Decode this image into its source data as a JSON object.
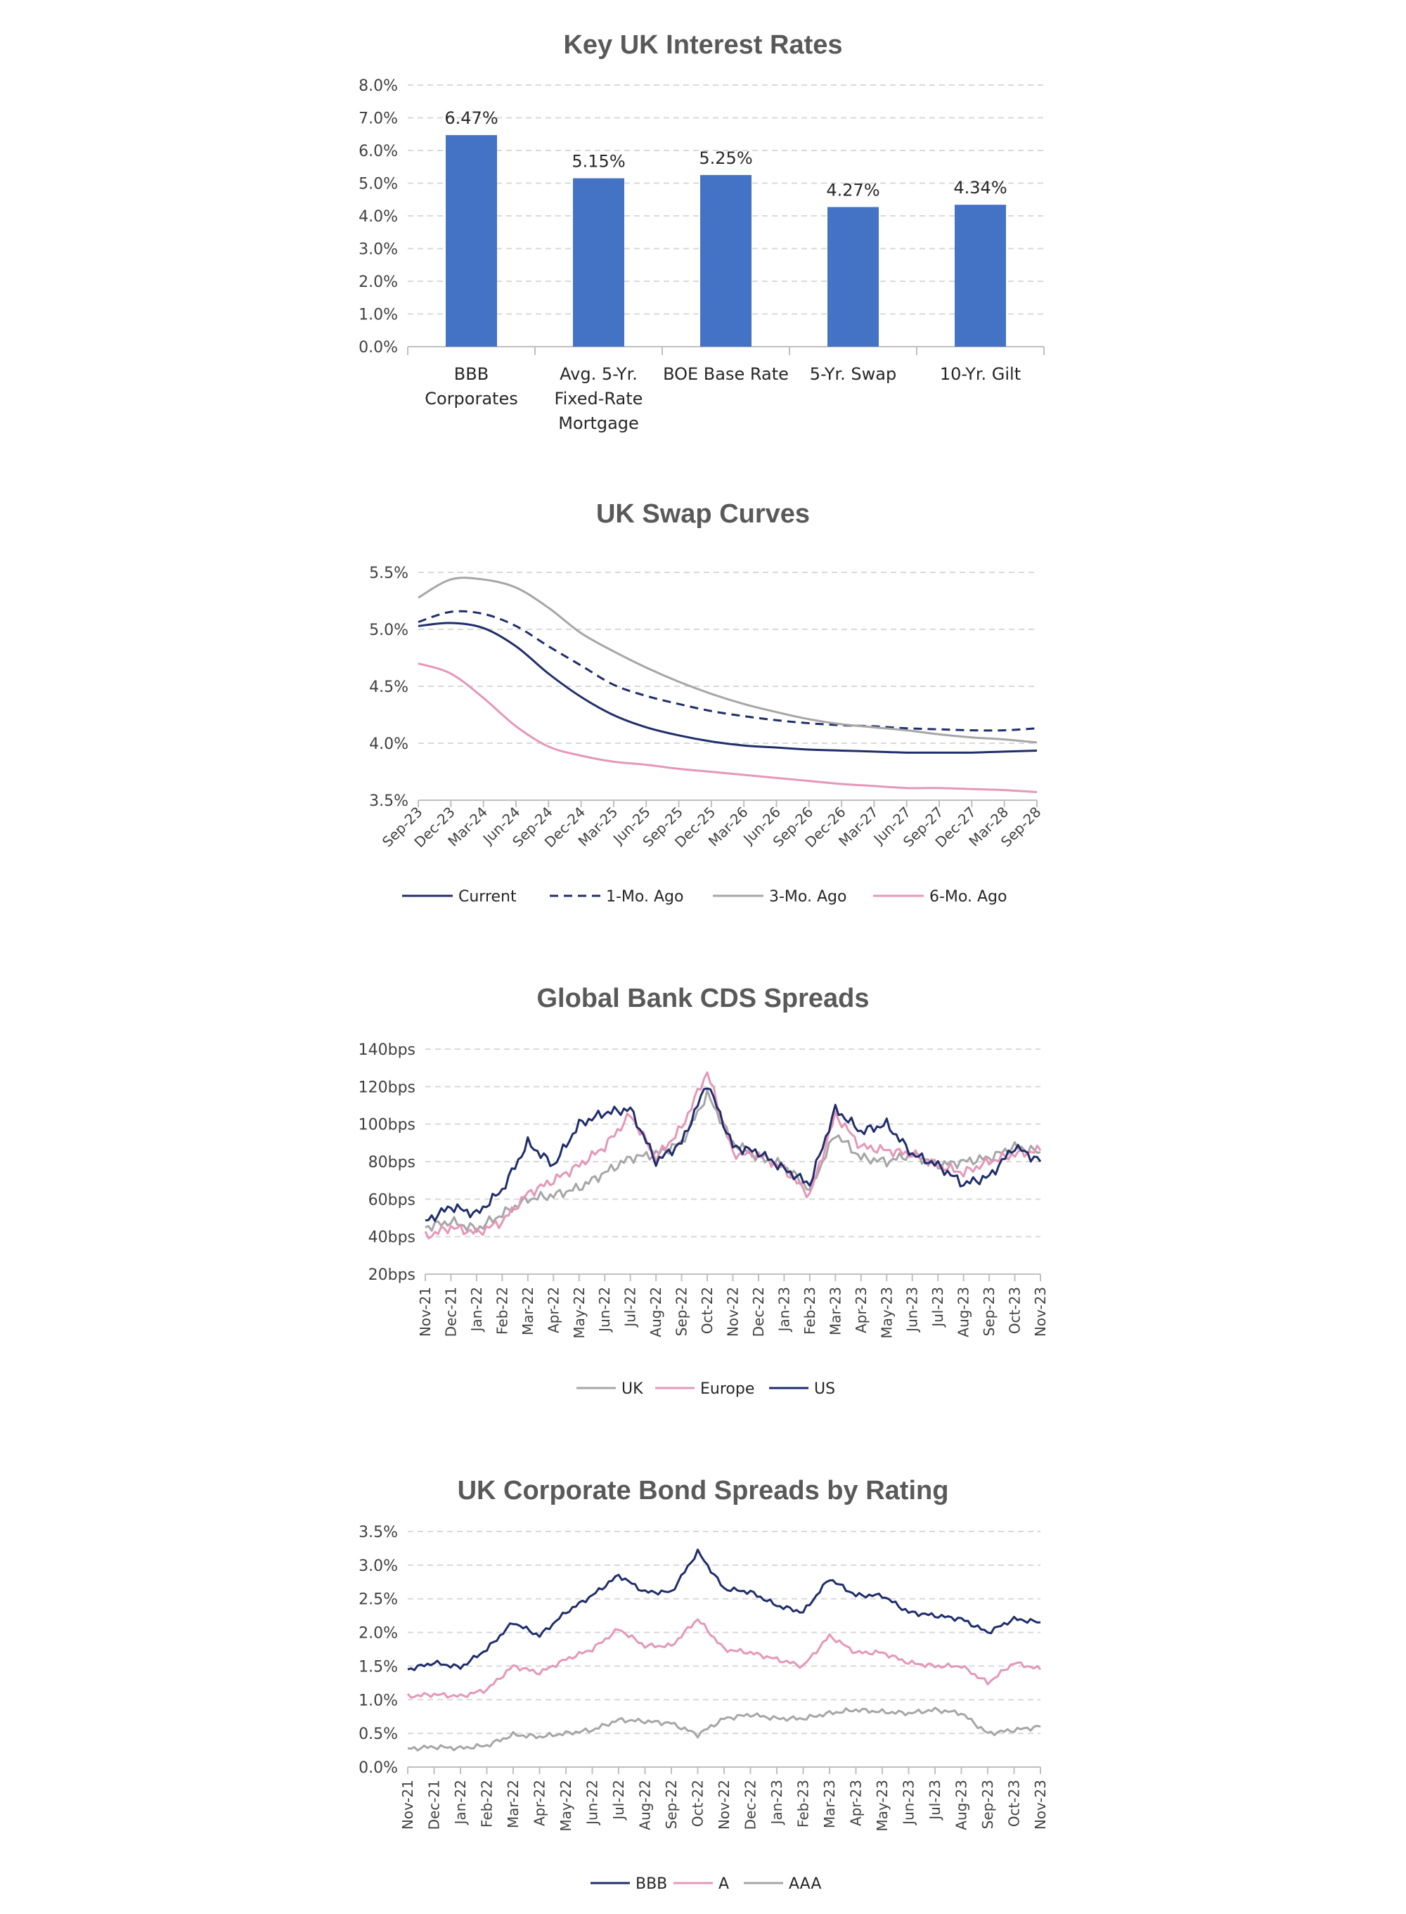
{
  "chart_data": [
    {
      "type": "bar",
      "title": "Key UK Interest Rates",
      "categories": [
        "BBB Corporates",
        "Avg. 5-Yr. Fixed-Rate Mortgage",
        "BOE Base Rate",
        "5-Yr. Swap",
        "10-Yr. Gilt"
      ],
      "category_lines": [
        [
          "BBB",
          "Corporates"
        ],
        [
          "Avg. 5-Yr.",
          "Fixed-Rate",
          "Mortgage"
        ],
        [
          "BOE Base Rate"
        ],
        [
          "5-Yr. Swap"
        ],
        [
          "10-Yr. Gilt"
        ]
      ],
      "values": [
        6.47,
        5.15,
        5.25,
        4.27,
        4.34
      ],
      "data_labels": [
        "6.47%",
        "5.15%",
        "5.25%",
        "4.27%",
        "4.34%"
      ],
      "yticks": [
        "0.0%",
        "1.0%",
        "2.0%",
        "3.0%",
        "4.0%",
        "5.0%",
        "6.0%",
        "7.0%",
        "8.0%"
      ],
      "ylim": [
        0,
        8
      ],
      "grid": true,
      "colors": {
        "bar": "#4472c4"
      }
    },
    {
      "type": "line",
      "title": "UK Swap Curves",
      "x": [
        "Sep-23",
        "Dec-23",
        "Mar-24",
        "Jun-24",
        "Sep-24",
        "Dec-24",
        "Mar-25",
        "Jun-25",
        "Sep-25",
        "Dec-25",
        "Mar-26",
        "Jun-26",
        "Sep-26",
        "Dec-26",
        "Mar-27",
        "Jun-27",
        "Sep-27",
        "Dec-27",
        "Mar-28",
        "Sep-28"
      ],
      "yticks": [
        "3.5%",
        "4.0%",
        "4.5%",
        "5.0%",
        "5.5%"
      ],
      "ylim": [
        3.5,
        5.75
      ],
      "grid": true,
      "legend": "bottom",
      "series": [
        {
          "name": "Current",
          "color": "#1f2d6b",
          "dash": "none",
          "values": [
            5.22,
            5.25,
            5.2,
            5.02,
            4.75,
            4.52,
            4.34,
            4.22,
            4.14,
            4.08,
            4.04,
            4.02,
            4.0,
            3.99,
            3.98,
            3.97,
            3.97,
            3.97,
            3.98,
            3.99
          ]
        },
        {
          "name": "1-Mo. Ago",
          "color": "#1f2d6b",
          "dash": "12,8",
          "values": [
            5.26,
            5.36,
            5.34,
            5.22,
            5.02,
            4.83,
            4.64,
            4.53,
            4.45,
            4.38,
            4.33,
            4.29,
            4.26,
            4.24,
            4.23,
            4.21,
            4.2,
            4.19,
            4.19,
            4.21
          ]
        },
        {
          "name": "3-Mo. Ago",
          "color": "#a6a6a6",
          "dash": "none",
          "values": [
            5.5,
            5.68,
            5.68,
            5.6,
            5.4,
            5.15,
            4.97,
            4.81,
            4.67,
            4.55,
            4.45,
            4.37,
            4.3,
            4.25,
            4.22,
            4.19,
            4.15,
            4.12,
            4.1,
            4.07
          ]
        },
        {
          "name": "6-Mo. Ago",
          "color": "#e597b8",
          "dash": "none",
          "values": [
            4.85,
            4.75,
            4.51,
            4.23,
            4.03,
            3.94,
            3.88,
            3.85,
            3.81,
            3.78,
            3.75,
            3.72,
            3.69,
            3.66,
            3.64,
            3.62,
            3.62,
            3.61,
            3.6,
            3.58
          ]
        }
      ]
    },
    {
      "type": "line",
      "title": "Global Bank CDS Spreads",
      "x": [
        "Nov-21",
        "Dec-21",
        "Jan-22",
        "Feb-22",
        "Mar-22",
        "Apr-22",
        "May-22",
        "Jun-22",
        "Jul-22",
        "Aug-22",
        "Sep-22",
        "Oct-22",
        "Nov-22",
        "Dec-22",
        "Jan-23",
        "Feb-23",
        "Mar-23",
        "Apr-23",
        "May-23",
        "Jun-23",
        "Jul-23",
        "Aug-23",
        "Sep-23",
        "Oct-23",
        "Nov-23"
      ],
      "yticks": [
        "20bps",
        "40bps",
        "60bps",
        "80bps",
        "100bps",
        "120bps",
        "140bps"
      ],
      "ylim": [
        20,
        140
      ],
      "grid": true,
      "legend": "bottom",
      "series": [
        {
          "name": "UK",
          "color": "#a6a6a6",
          "values": [
            45,
            48,
            44,
            52,
            60,
            62,
            66,
            74,
            82,
            84,
            90,
            116,
            90,
            82,
            78,
            65,
            95,
            82,
            80,
            84,
            78,
            80,
            82,
            88,
            85
          ]
        },
        {
          "name": "Europe",
          "color": "#e597b8",
          "values": [
            40,
            45,
            42,
            48,
            63,
            70,
            78,
            88,
            105,
            82,
            98,
            128,
            84,
            84,
            76,
            62,
            105,
            88,
            86,
            84,
            78,
            74,
            80,
            84,
            86
          ]
        },
        {
          "name": "US",
          "color": "#1f2d6b",
          "values": [
            48,
            56,
            52,
            65,
            90,
            78,
            100,
            106,
            108,
            80,
            90,
            122,
            88,
            85,
            76,
            68,
            108,
            96,
            100,
            84,
            78,
            68,
            72,
            88,
            80
          ]
        }
      ]
    },
    {
      "type": "line",
      "title": "UK Corporate Bond Spreads by Rating",
      "x": [
        "Nov-21",
        "Dec-21",
        "Jan-22",
        "Feb-22",
        "Mar-22",
        "Apr-22",
        "May-22",
        "Jun-22",
        "Jul-22",
        "Aug-22",
        "Sep-22",
        "Oct-22",
        "Nov-22",
        "Dec-22",
        "Jan-23",
        "Feb-23",
        "Mar-23",
        "Apr-23",
        "May-23",
        "Jun-23",
        "Jul-23",
        "Aug-23",
        "Sep-23",
        "Oct-23",
        "Nov-23"
      ],
      "yticks": [
        "0.0%",
        "0.5%",
        "1.0%",
        "1.5%",
        "2.0%",
        "2.5%",
        "3.0%",
        "3.5%"
      ],
      "ylim": [
        0,
        3.5
      ],
      "grid": true,
      "legend": "bottom",
      "series": [
        {
          "name": "BBB",
          "color": "#1f2d6b",
          "values": [
            1.45,
            1.55,
            1.48,
            1.75,
            2.15,
            1.95,
            2.3,
            2.55,
            2.85,
            2.6,
            2.6,
            3.2,
            2.65,
            2.6,
            2.4,
            2.3,
            2.8,
            2.55,
            2.55,
            2.3,
            2.25,
            2.2,
            2.0,
            2.2,
            2.15
          ]
        },
        {
          "name": "A",
          "color": "#e597b8",
          "values": [
            1.05,
            1.08,
            1.05,
            1.15,
            1.5,
            1.4,
            1.6,
            1.75,
            2.05,
            1.8,
            1.8,
            2.2,
            1.75,
            1.7,
            1.6,
            1.5,
            1.95,
            1.7,
            1.7,
            1.55,
            1.5,
            1.5,
            1.25,
            1.55,
            1.45
          ]
        },
        {
          "name": "AAA",
          "color": "#a6a6a6",
          "values": [
            0.27,
            0.3,
            0.28,
            0.32,
            0.48,
            0.45,
            0.5,
            0.55,
            0.7,
            0.68,
            0.65,
            0.48,
            0.72,
            0.78,
            0.72,
            0.72,
            0.8,
            0.85,
            0.82,
            0.8,
            0.85,
            0.8,
            0.5,
            0.55,
            0.6
          ]
        }
      ]
    }
  ]
}
